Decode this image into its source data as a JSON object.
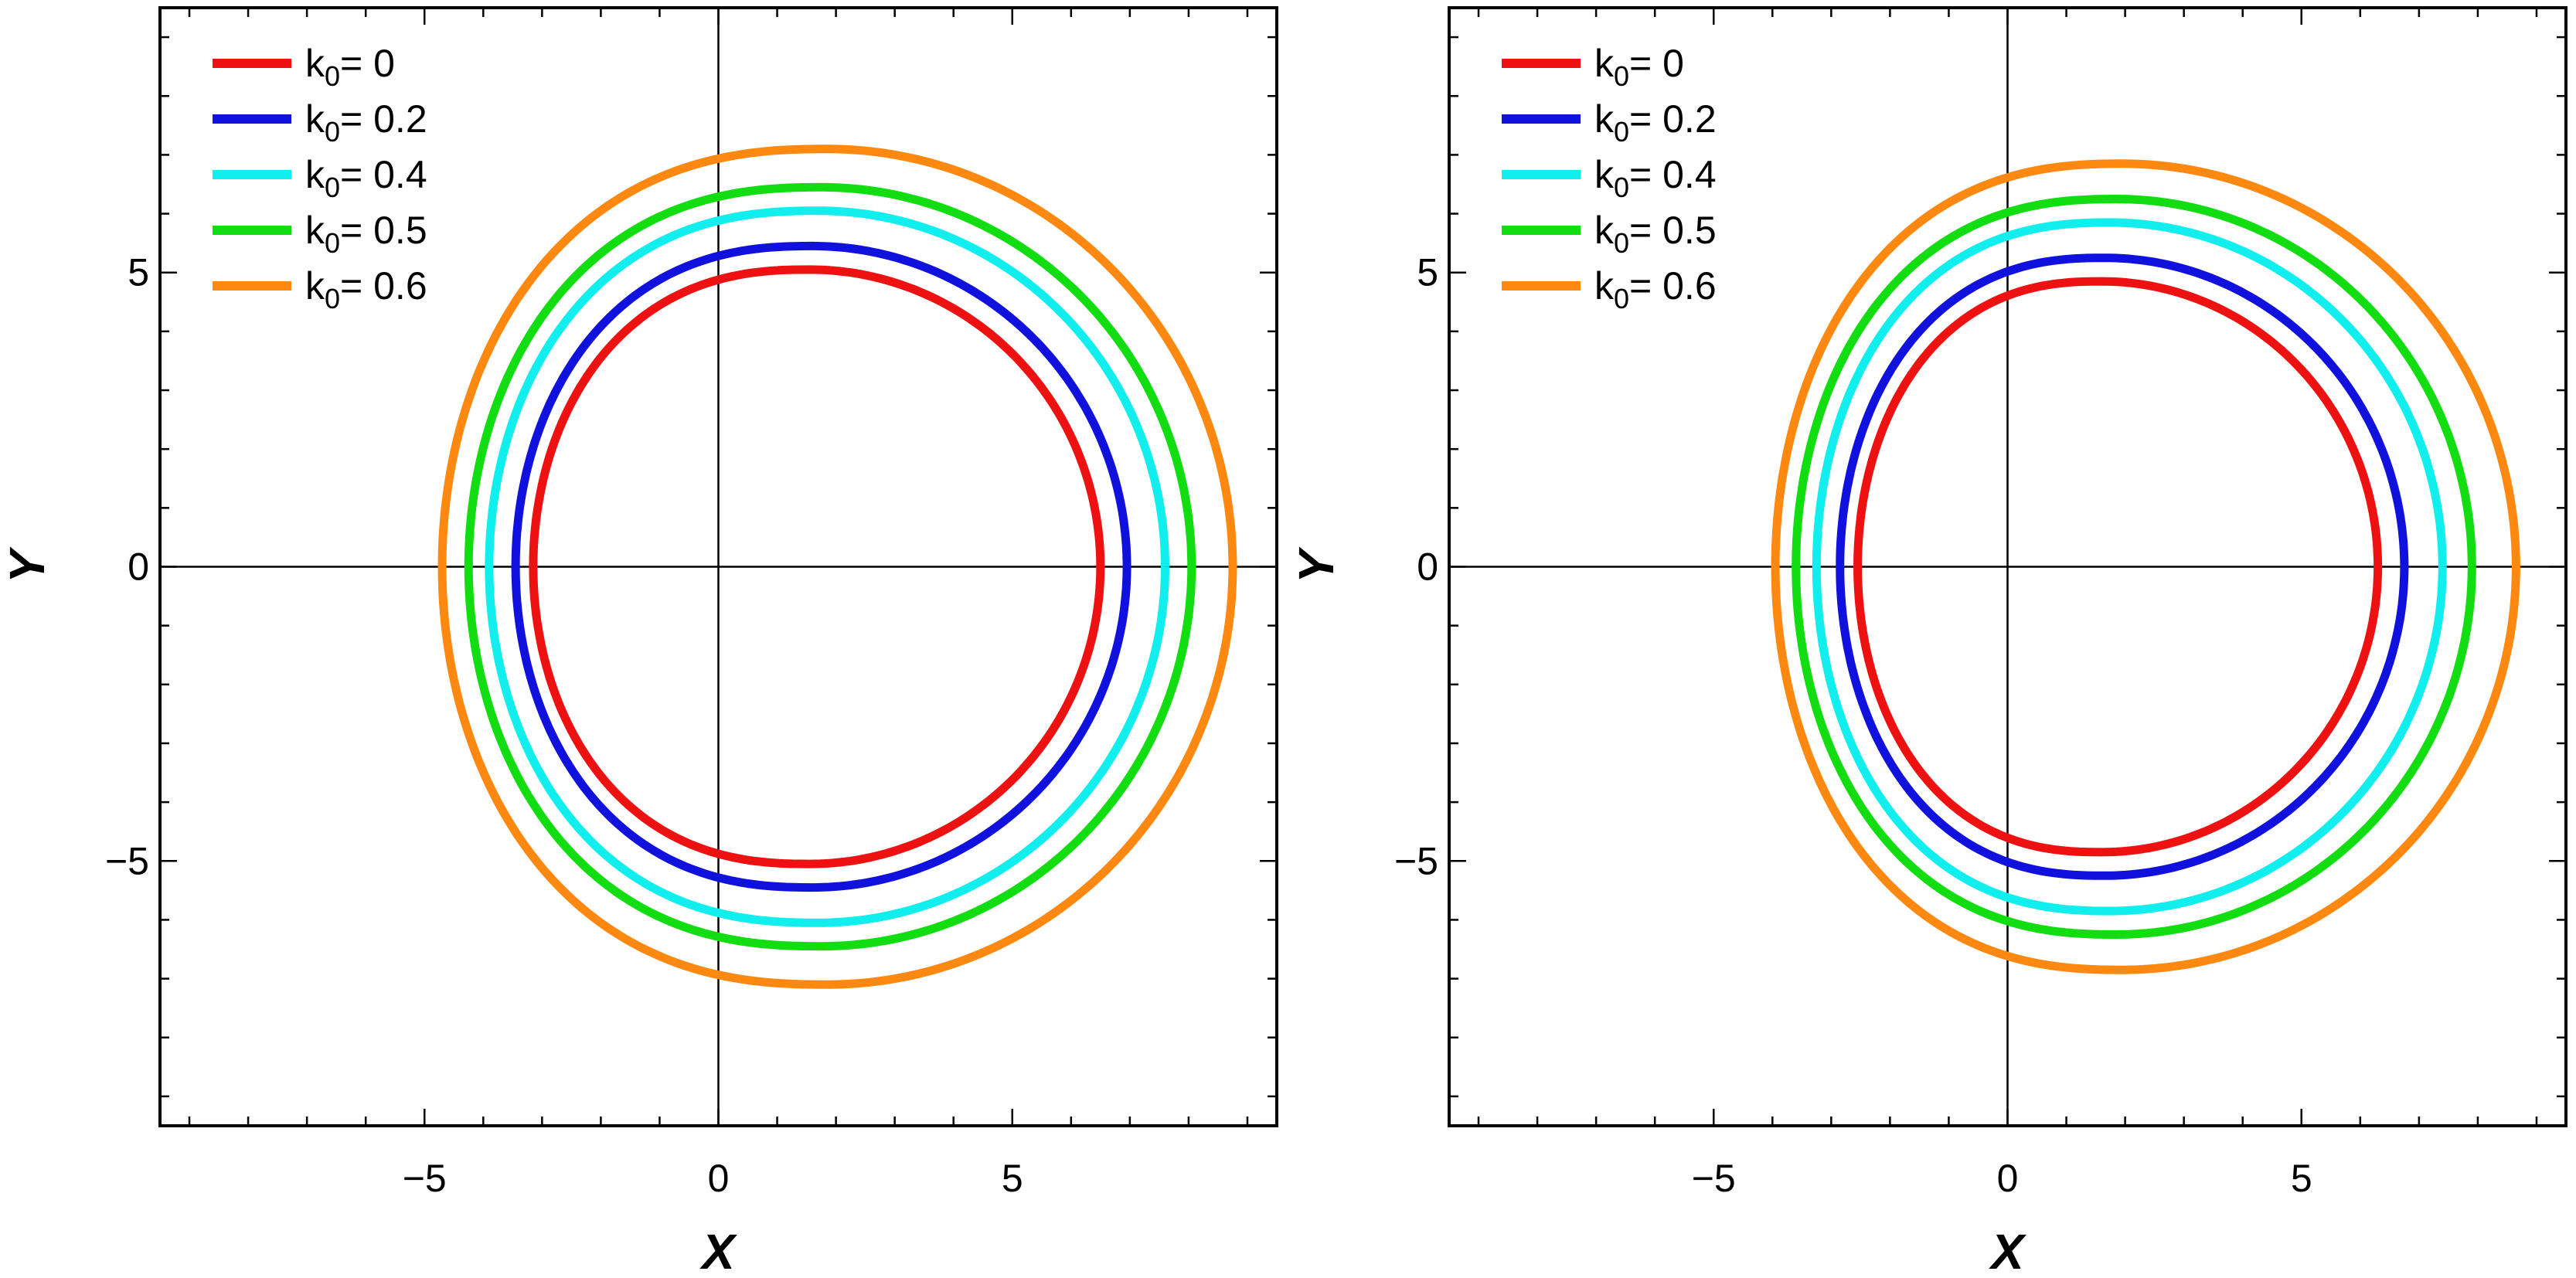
{
  "chart_data": [
    {
      "type": "line",
      "panel": "left",
      "xlabel": "X",
      "ylabel": "Y",
      "xlim": [
        -9.5,
        9.5
      ],
      "ylim": [
        -9.5,
        9.5
      ],
      "xticks": [
        -5,
        0,
        5
      ],
      "yticks": [
        -5,
        0,
        5
      ],
      "grid": false,
      "legend_position": "top-left",
      "series": [
        {
          "name": "k₀= 0",
          "legend_base": "k",
          "legend_sub": "0",
          "legend_value": "= 0",
          "color": "#ee1111",
          "left_x": -3.15,
          "right_x": 6.5,
          "center_x": 1.55,
          "half_height": 5.05
        },
        {
          "name": "k₀= 0.2",
          "legend_base": "k",
          "legend_sub": "0",
          "legend_value": "= 0.2",
          "color": "#1111dd",
          "left_x": -3.45,
          "right_x": 6.95,
          "center_x": 1.6,
          "half_height": 5.45
        },
        {
          "name": "k₀= 0.4",
          "legend_base": "k",
          "legend_sub": "0",
          "legend_value": "= 0.4",
          "color": "#11eeee",
          "left_x": -3.9,
          "right_x": 7.6,
          "center_x": 1.7,
          "half_height": 6.05
        },
        {
          "name": "k₀= 0.5",
          "legend_base": "k",
          "legend_sub": "0",
          "legend_value": "= 0.5",
          "color": "#11dd11",
          "left_x": -4.25,
          "right_x": 8.05,
          "center_x": 1.75,
          "half_height": 6.45
        },
        {
          "name": "k₀= 0.6",
          "legend_base": "k",
          "legend_sub": "0",
          "legend_value": "= 0.6",
          "color": "#ff8811",
          "left_x": -4.7,
          "right_x": 8.75,
          "center_x": 1.85,
          "half_height": 7.1
        }
      ]
    },
    {
      "type": "line",
      "panel": "right",
      "xlabel": "X",
      "ylabel": "Y",
      "xlim": [
        -9.5,
        9.5
      ],
      "ylim": [
        -9.5,
        9.5
      ],
      "xticks": [
        -5,
        0,
        5
      ],
      "yticks": [
        -5,
        0,
        5
      ],
      "grid": false,
      "legend_position": "top-left",
      "series": [
        {
          "name": "k₀= 0",
          "legend_base": "k",
          "legend_sub": "0",
          "legend_value": "= 0",
          "color": "#ee1111",
          "left_x": -2.55,
          "right_x": 6.3,
          "center_x": 1.6,
          "half_height": 4.85
        },
        {
          "name": "k₀= 0.2",
          "legend_base": "k",
          "legend_sub": "0",
          "legend_value": "= 0.2",
          "color": "#1111dd",
          "left_x": -2.85,
          "right_x": 6.75,
          "center_x": 1.65,
          "half_height": 5.25
        },
        {
          "name": "k₀= 0.4",
          "legend_base": "k",
          "legend_sub": "0",
          "legend_value": "= 0.4",
          "color": "#11eeee",
          "left_x": -3.25,
          "right_x": 7.4,
          "center_x": 1.75,
          "half_height": 5.85
        },
        {
          "name": "k₀= 0.5",
          "legend_base": "k",
          "legend_sub": "0",
          "legend_value": "= 0.5",
          "color": "#11dd11",
          "left_x": -3.6,
          "right_x": 7.9,
          "center_x": 1.85,
          "half_height": 6.25
        },
        {
          "name": "k₀= 0.6",
          "legend_base": "k",
          "legend_sub": "0",
          "legend_value": "= 0.6",
          "color": "#ff8811",
          "left_x": -3.95,
          "right_x": 8.65,
          "center_x": 1.95,
          "half_height": 6.85
        }
      ]
    }
  ]
}
